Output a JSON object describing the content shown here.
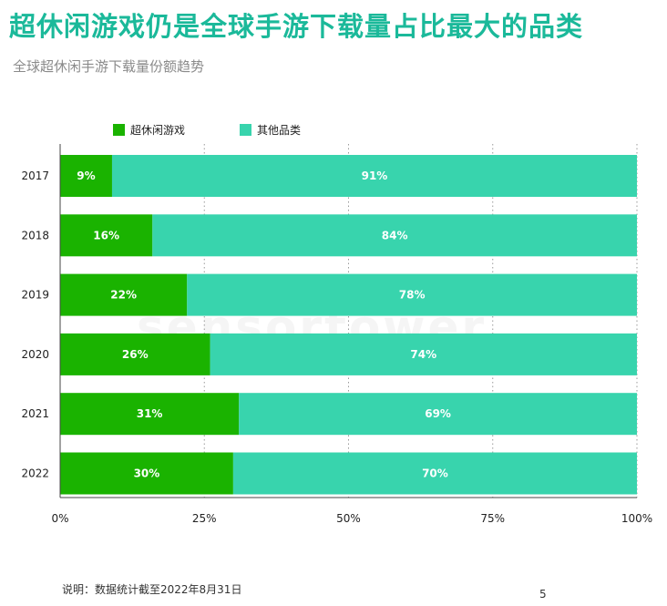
{
  "title": "超休闲游戏仍是全球手游下载量占比最大的品类",
  "subtitle": "全球超休闲手游下载量份额趋势",
  "watermark": "sensortower",
  "note": "说明：数据统计截至2022年8月31日",
  "page_number": "5",
  "colors": {
    "casual": "#1ab300",
    "other": "#38d4ad"
  },
  "chart_data": {
    "type": "bar",
    "orientation": "horizontal",
    "stacked": true,
    "categories": [
      "2017",
      "2018",
      "2019",
      "2020",
      "2021",
      "2022"
    ],
    "series": [
      {
        "name": "超休闲游戏",
        "values": [
          9,
          16,
          22,
          26,
          31,
          30
        ],
        "labels": [
          "9%",
          "16%",
          "22%",
          "26%",
          "31%",
          "30%"
        ]
      },
      {
        "name": "其他品类",
        "values": [
          91,
          84,
          78,
          74,
          69,
          70
        ],
        "labels": [
          "91%",
          "84%",
          "78%",
          "74%",
          "69%",
          "70%"
        ]
      }
    ],
    "xlim": [
      0,
      100
    ],
    "x_ticks": [
      "0%",
      "25%",
      "50%",
      "75%",
      "100%"
    ],
    "grid": "dotted vertical",
    "legend": "top-left"
  }
}
